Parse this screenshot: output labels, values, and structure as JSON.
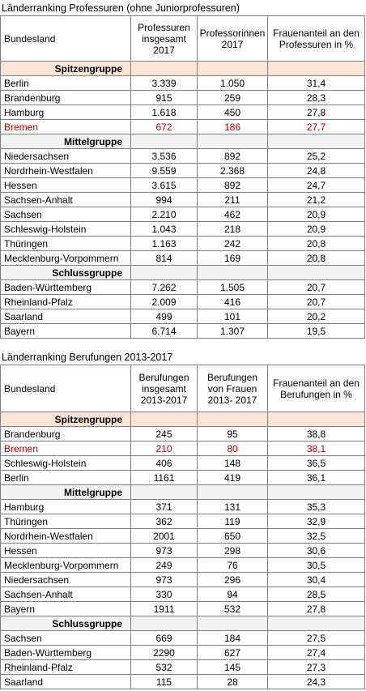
{
  "tables": [
    {
      "title": "Länderranking Professuren (ohne Juniorprofessuren)",
      "header": [
        "Bundesland",
        "Professuren insgesamt 2017",
        "Professorinnen 2017",
        "Frauenanteil an den Professuren in %"
      ],
      "groups": [
        {
          "name": "Spitzengruppe",
          "rows": [
            {
              "cells": [
                "Berlin",
                "3.339",
                "1.050",
                "31,4"
              ]
            },
            {
              "cells": [
                "Brandenburg",
                "915",
                "259",
                "28,3"
              ]
            },
            {
              "cells": [
                "Hamburg",
                "1.618",
                "450",
                "27,8"
              ]
            },
            {
              "cells": [
                "Bremen",
                "672",
                "186",
                "27,7"
              ],
              "color": "#c00000"
            }
          ]
        },
        {
          "name": "Mittelgruppe",
          "rows": [
            {
              "cells": [
                "Niedersachsen",
                "3.536",
                "892",
                "25,2"
              ]
            },
            {
              "cells": [
                "Nordrhein-Westfalen",
                "9.559",
                "2.368",
                "24,8"
              ]
            },
            {
              "cells": [
                "Hessen",
                "3.615",
                "892",
                "24,7"
              ]
            },
            {
              "cells": [
                "Sachsen-Anhalt",
                "994",
                "211",
                "21,2"
              ]
            },
            {
              "cells": [
                "Sachsen",
                "2.210",
                "462",
                "20,9"
              ]
            },
            {
              "cells": [
                "Schleswig-Holstein",
                "1.043",
                "218",
                "20,9"
              ]
            },
            {
              "cells": [
                "Thüringen",
                "1.163",
                "242",
                "20,8"
              ]
            },
            {
              "cells": [
                "Mecklenburg-Vorpommern",
                "814",
                "169",
                "20,8"
              ]
            }
          ]
        },
        {
          "name": "Schlussgruppe",
          "rows": [
            {
              "cells": [
                "Baden-Württemberg",
                "7.262",
                "1.505",
                "20,7"
              ]
            },
            {
              "cells": [
                "Rheinland-Pfalz",
                "2.009",
                "416",
                "20,7"
              ]
            },
            {
              "cells": [
                "Saarland",
                "499",
                "101",
                "20,2"
              ]
            },
            {
              "cells": [
                "Bayern",
                "6.714",
                "1.307",
                "19,5"
              ]
            }
          ]
        }
      ]
    },
    {
      "title": "Länderranking Berufungen 2013-2017",
      "header": [
        "Bundesland",
        "Berufungen insgesamt 2013-2017",
        "Berufungen von Frauen 2013- 2017",
        "Frauenanteil an den Berufungen in %"
      ],
      "groups": [
        {
          "name": "Spitzengruppe",
          "rows": [
            {
              "cells": [
                "Brandenburg",
                "245",
                "95",
                "38,8"
              ]
            },
            {
              "cells": [
                "Bremen",
                "210",
                "80",
                "38,1"
              ],
              "color": "#c00000"
            },
            {
              "cells": [
                "Schleswig-Holstein",
                "406",
                "148",
                "36,5"
              ]
            },
            {
              "cells": [
                "Berlin",
                "1161",
                "419",
                "36,1"
              ]
            }
          ]
        },
        {
          "name": "Mittelgruppe",
          "rows": [
            {
              "cells": [
                "Hamburg",
                "371",
                "131",
                "35,3"
              ]
            },
            {
              "cells": [
                "Thüringen",
                "362",
                "119",
                "32,9"
              ]
            },
            {
              "cells": [
                "Nordrhein-Westfalen",
                "2001",
                "650",
                "32,5"
              ]
            },
            {
              "cells": [
                "Hessen",
                "973",
                "298",
                "30,6"
              ]
            },
            {
              "cells": [
                "Mecklenburg-Vorpommern",
                "249",
                "76",
                "30,5"
              ]
            },
            {
              "cells": [
                "Niedersachsen",
                "973",
                "296",
                "30,4"
              ]
            },
            {
              "cells": [
                "Sachsen-Anhalt",
                "330",
                "94",
                "28,5"
              ]
            },
            {
              "cells": [
                "Bayern",
                "1911",
                "532",
                "27,8"
              ]
            }
          ]
        },
        {
          "name": "Schlussgruppe",
          "rows": [
            {
              "cells": [
                "Sachsen",
                "669",
                "184",
                "27,5"
              ]
            },
            {
              "cells": [
                "Baden-Württemberg",
                "2290",
                "627",
                "27,4"
              ]
            },
            {
              "cells": [
                "Rheinland-Pfalz",
                "532",
                "145",
                "27,3"
              ]
            },
            {
              "cells": [
                "Saarland",
                "115",
                "28",
                "24,3"
              ]
            }
          ]
        }
      ]
    }
  ]
}
